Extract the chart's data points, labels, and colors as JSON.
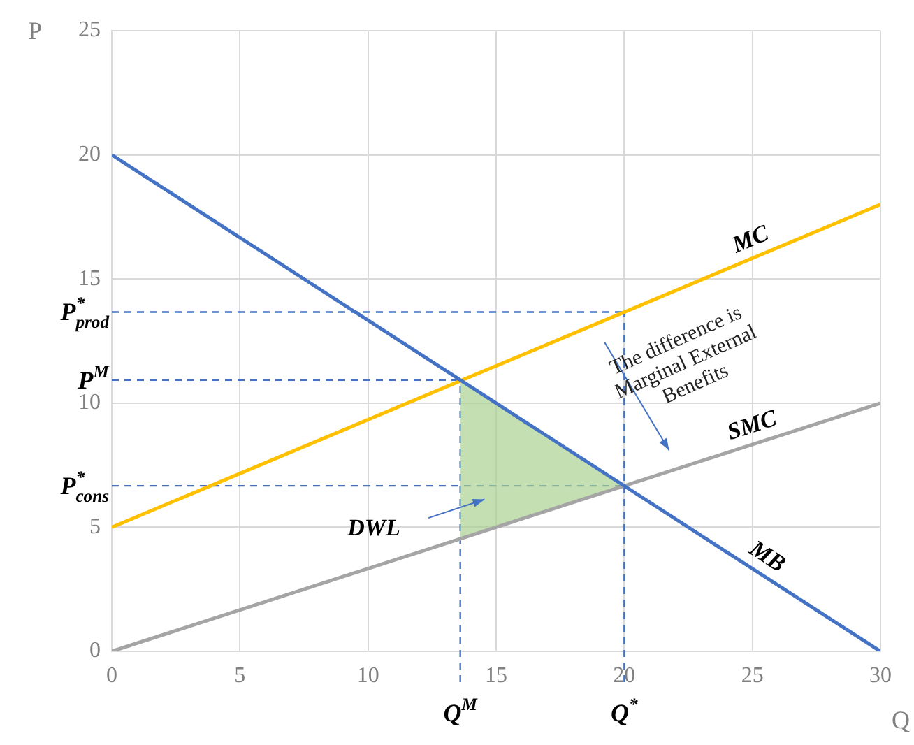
{
  "chart_data": {
    "type": "line",
    "xlabel": "Q",
    "ylabel": "P",
    "xlim": [
      0,
      30
    ],
    "ylim": [
      0,
      25
    ],
    "xticks": [
      0,
      5,
      10,
      15,
      20,
      25,
      30
    ],
    "yticks": [
      0,
      5,
      10,
      15,
      20,
      25
    ],
    "grid": true,
    "legend": false,
    "marker": "none",
    "line_style": "solid",
    "series": [
      {
        "name": "MB",
        "color": "#4472c4",
        "x": [
          0,
          30
        ],
        "values": [
          20,
          0
        ]
      },
      {
        "name": "MC",
        "color": "#ffc000",
        "x": [
          0,
          30
        ],
        "values": [
          5,
          18
        ]
      },
      {
        "name": "SMC",
        "color": "#a5a5a5",
        "x": [
          0,
          30
        ],
        "values": [
          0,
          10
        ]
      },
      {
        "type": "area",
        "color": "#a9d18e",
        "x": [
          13.6,
          20,
          13.6
        ],
        "values": [
          10.93,
          6.67,
          4.53
        ]
      }
    ],
    "ref_lines": [
      {
        "axis": "y",
        "value": 13.67,
        "label": "P$^{*}$$_{prod}$",
        "color": "#4472c4",
        "line_style": "dashed"
      },
      {
        "axis": "y",
        "value": 10.93,
        "label": "P$^{M}$",
        "color": "#4472c4",
        "line_style": "dashed"
      },
      {
        "axis": "y",
        "value": 6.67,
        "label": "P$^{*}$$_{cons}$",
        "color": "#4472c4",
        "line_style": "dashed"
      },
      {
        "axis": "x",
        "value": 13.6,
        "label": "Q$^{M}$",
        "color": "#4472c4",
        "line_style": "dashed"
      },
      {
        "axis": "x",
        "value": 20,
        "label": "Q$^{*}$",
        "color": "#4472c4",
        "line_style": "dashed"
      }
    ],
    "annotations": [
      "DWL",
      "The difference is Marginal External Benefits"
    ]
  }
}
